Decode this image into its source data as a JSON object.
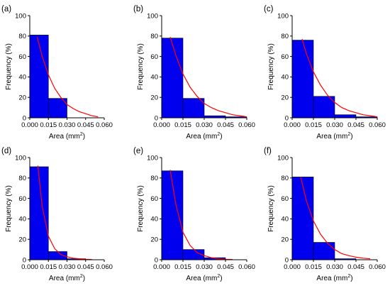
{
  "chart_data": [
    {
      "panel": "(a)",
      "type": "bar",
      "categories": [
        "0.000-0.015",
        "0.015-0.030",
        "0.030-0.045",
        "0.045-0.060"
      ],
      "bin_edges": [
        0.0,
        0.015,
        0.03,
        0.045,
        0.06
      ],
      "values": [
        81,
        19,
        0,
        0
      ],
      "fit": {
        "x": [
          0.006,
          0.01,
          0.015,
          0.02,
          0.025,
          0.03,
          0.035,
          0.04,
          0.045,
          0.05,
          0.055
        ],
        "y": [
          79,
          60,
          42,
          29,
          20,
          13,
          9,
          6,
          4,
          2,
          1
        ]
      },
      "xlabel": "Area (mm",
      "xlabel_sup": "2",
      "xlabel_end": ")",
      "ylabel": "Frequency (%)",
      "xlim": [
        0,
        0.06
      ],
      "ylim": [
        0,
        100
      ],
      "xticks": [
        "0.000",
        "0.015",
        "0.030",
        "0.045",
        "0.060"
      ],
      "yticks": [
        "0",
        "20",
        "40",
        "60",
        "80",
        "100"
      ]
    },
    {
      "panel": "(b)",
      "type": "bar",
      "categories": [
        "0.000-0.015",
        "0.015-0.030",
        "0.030-0.045",
        "0.045-0.060"
      ],
      "bin_edges": [
        0.0,
        0.015,
        0.03,
        0.045,
        0.06
      ],
      "values": [
        78,
        19,
        2,
        1
      ],
      "fit": {
        "x": [
          0.006,
          0.01,
          0.015,
          0.02,
          0.025,
          0.03,
          0.035,
          0.04,
          0.045,
          0.05,
          0.055,
          0.06
        ],
        "y": [
          79,
          61,
          43,
          30,
          21,
          14,
          10,
          7,
          5,
          3,
          2,
          1
        ]
      },
      "xlabel": "Area (mm",
      "xlabel_sup": "2",
      "xlabel_end": ")",
      "ylabel": "Frequency (%)",
      "xlim": [
        0,
        0.06
      ],
      "ylim": [
        0,
        100
      ],
      "xticks": [
        "0.000",
        "0.015",
        "0.030",
        "0.045",
        "0.060"
      ],
      "yticks": [
        "0",
        "20",
        "40",
        "60",
        "80",
        "100"
      ]
    },
    {
      "panel": "(c)",
      "type": "bar",
      "categories": [
        "0.000-0.015",
        "0.015-0.030",
        "0.030-0.045",
        "0.045-0.060"
      ],
      "bin_edges": [
        0.0,
        0.015,
        0.03,
        0.045,
        0.06
      ],
      "values": [
        76,
        21,
        3,
        1
      ],
      "fit": {
        "x": [
          0.007,
          0.01,
          0.015,
          0.02,
          0.025,
          0.03,
          0.035,
          0.04,
          0.045,
          0.05,
          0.055,
          0.06
        ],
        "y": [
          77,
          63,
          45,
          32,
          22,
          15,
          10,
          7,
          5,
          3,
          2,
          1
        ]
      },
      "xlabel": "Area (mm",
      "xlabel_sup": "2",
      "xlabel_end": ")",
      "ylabel": "Frequency (%)",
      "xlim": [
        0,
        0.06
      ],
      "ylim": [
        0,
        100
      ],
      "xticks": [
        "0.000",
        "0.015",
        "0.030",
        "0.045",
        "0.060"
      ],
      "yticks": [
        "0",
        "20",
        "40",
        "60",
        "80",
        "100"
      ]
    },
    {
      "panel": "(d)",
      "type": "bar",
      "categories": [
        "0.000-0.015",
        "0.015-0.030",
        "0.030-0.045",
        "0.045-0.060"
      ],
      "bin_edges": [
        0.0,
        0.015,
        0.03,
        0.045,
        0.06
      ],
      "values": [
        91,
        8,
        1,
        0
      ],
      "fit": {
        "x": [
          0.0065,
          0.01,
          0.015,
          0.02,
          0.025,
          0.03,
          0.035,
          0.04,
          0.045,
          0.05
        ],
        "y": [
          92,
          52,
          23,
          11,
          5,
          3,
          1.5,
          1,
          0.5,
          0.3
        ]
      },
      "xlabel": "Area (mm",
      "xlabel_sup": "2",
      "xlabel_end": ")",
      "ylabel": "Frequency (%)",
      "xlim": [
        0,
        0.06
      ],
      "ylim": [
        0,
        100
      ],
      "xticks": [
        "0.000",
        "0.015",
        "0.030",
        "0.045",
        "0.060"
      ],
      "yticks": [
        "0",
        "20",
        "40",
        "60",
        "80",
        "100"
      ]
    },
    {
      "panel": "(e)",
      "type": "bar",
      "categories": [
        "0.000-0.015",
        "0.015-0.030",
        "0.030-0.045",
        "0.045-0.060"
      ],
      "bin_edges": [
        0.0,
        0.015,
        0.03,
        0.045,
        0.06
      ],
      "values": [
        87,
        10,
        2,
        0
      ],
      "fit": {
        "x": [
          0.006,
          0.01,
          0.015,
          0.02,
          0.025,
          0.03,
          0.035,
          0.04,
          0.045,
          0.05
        ],
        "y": [
          88,
          54,
          27,
          14,
          7,
          4,
          2,
          1,
          0.5,
          0.3
        ]
      },
      "xlabel": "Area (mm",
      "xlabel_sup": "2",
      "xlabel_end": ")",
      "ylabel": "Frequency (%)",
      "xlim": [
        0,
        0.06
      ],
      "ylim": [
        0,
        100
      ],
      "xticks": [
        "0.000",
        "0.015",
        "0.030",
        "0.045",
        "0.060"
      ],
      "yticks": [
        "0",
        "20",
        "40",
        "60",
        "80",
        "100"
      ]
    },
    {
      "panel": "(f)",
      "type": "bar",
      "categories": [
        "0.000-0.015",
        "0.015-0.030",
        "0.030-0.045",
        "0.045-0.060"
      ],
      "bin_edges": [
        0.0,
        0.015,
        0.03,
        0.045,
        0.06
      ],
      "values": [
        81,
        17,
        1,
        0
      ],
      "fit": {
        "x": [
          0.006,
          0.01,
          0.015,
          0.02,
          0.025,
          0.03,
          0.035,
          0.04,
          0.045,
          0.05,
          0.055
        ],
        "y": [
          81,
          58,
          38,
          25,
          16,
          10,
          6,
          4,
          2.5,
          1.5,
          1
        ]
      },
      "xlabel": "Area (mm",
      "xlabel_sup": "2",
      "xlabel_end": ")",
      "ylabel": "Frequency (%)",
      "xlim": [
        0,
        0.06
      ],
      "ylim": [
        0,
        100
      ],
      "xticks": [
        "0.000",
        "0.015",
        "0.030",
        "0.045",
        "0.060"
      ],
      "yticks": [
        "0",
        "20",
        "40",
        "60",
        "80",
        "100"
      ]
    }
  ],
  "colors": {
    "bar_fill": "#0000ee",
    "bar_edge": "#000000",
    "fit_line": "#ff0000",
    "axis": "#000000"
  }
}
